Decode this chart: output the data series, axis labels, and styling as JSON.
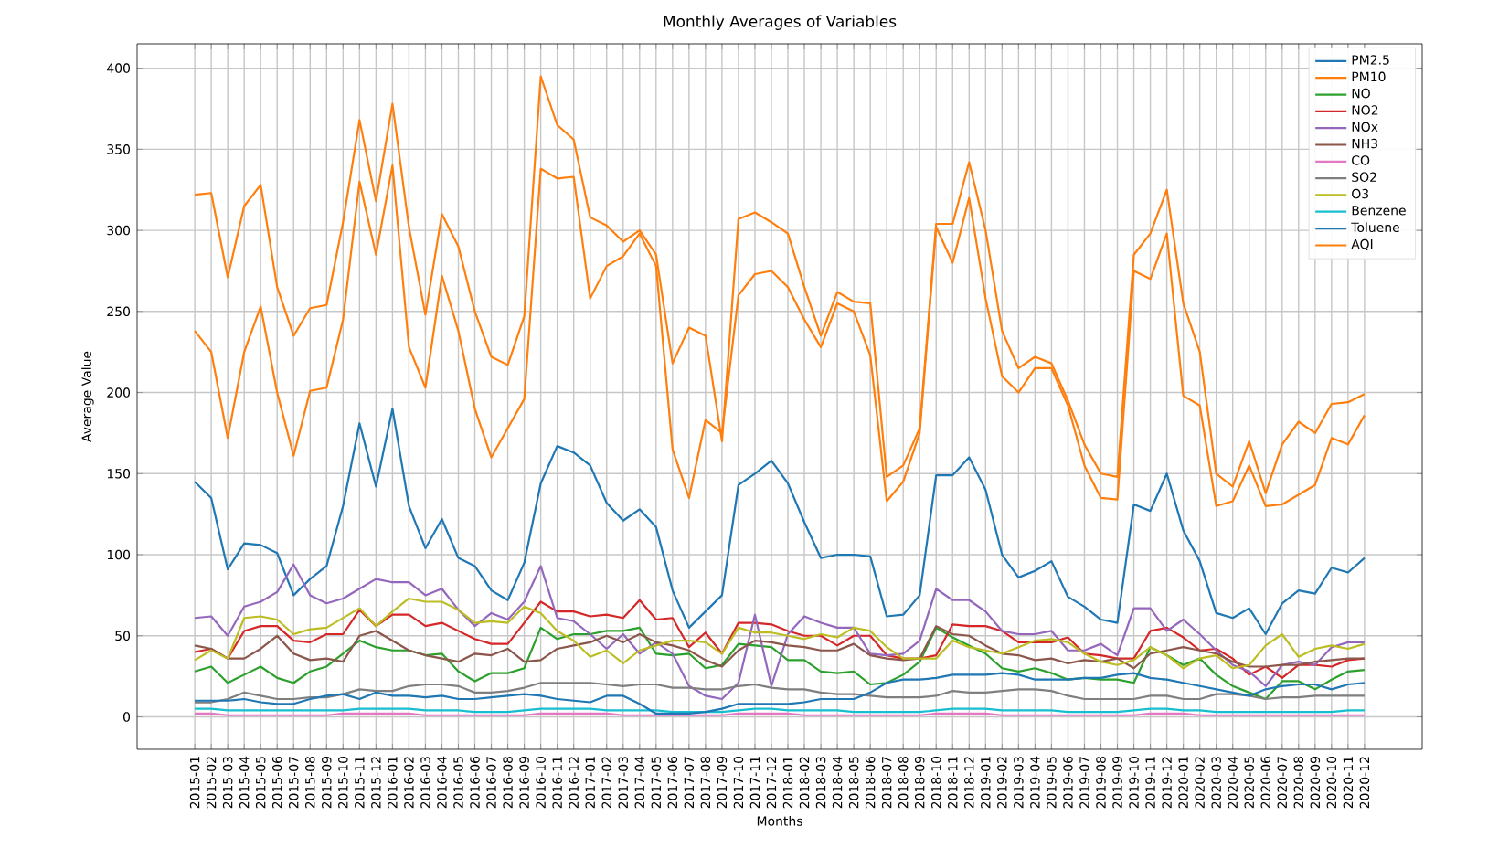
{
  "chart_data": {
    "type": "line",
    "title": "Monthly Averages of Variables",
    "xlabel": "Months",
    "ylabel": "Average Value",
    "categories": [
      "2015-01",
      "2015-02",
      "2015-03",
      "2015-04",
      "2015-05",
      "2015-06",
      "2015-07",
      "2015-08",
      "2015-09",
      "2015-10",
      "2015-11",
      "2015-12",
      "2016-01",
      "2016-02",
      "2016-03",
      "2016-04",
      "2016-05",
      "2016-06",
      "2016-07",
      "2016-08",
      "2016-09",
      "2016-10",
      "2016-11",
      "2016-12",
      "2017-01",
      "2017-02",
      "2017-03",
      "2017-04",
      "2017-05",
      "2017-06",
      "2017-07",
      "2017-08",
      "2017-09",
      "2017-10",
      "2017-11",
      "2017-12",
      "2018-01",
      "2018-02",
      "2018-03",
      "2018-04",
      "2018-05",
      "2018-06",
      "2018-07",
      "2018-08",
      "2018-09",
      "2018-10",
      "2018-11",
      "2018-12",
      "2019-01",
      "2019-02",
      "2019-03",
      "2019-04",
      "2019-05",
      "2019-06",
      "2019-07",
      "2019-08",
      "2019-09",
      "2019-10",
      "2019-11",
      "2019-12",
      "2020-01",
      "2020-02",
      "2020-03",
      "2020-04",
      "2020-05",
      "2020-06",
      "2020-07",
      "2020-08",
      "2020-09",
      "2020-10",
      "2020-11",
      "2020-12"
    ],
    "series": [
      {
        "name": "PM2.5",
        "color": "#1f77b4",
        "values": [
          145,
          135,
          91,
          107,
          106,
          101,
          75,
          85,
          93,
          130,
          181,
          142,
          190,
          130,
          104,
          122,
          98,
          93,
          78,
          72,
          95,
          144,
          167,
          163,
          155,
          132,
          121,
          128,
          117,
          78,
          55,
          65,
          75,
          143,
          150,
          158,
          144,
          120,
          98,
          100,
          100,
          99,
          62,
          63,
          75,
          149,
          149,
          160,
          140,
          100,
          86,
          90,
          96,
          74,
          68,
          60,
          58,
          131,
          127,
          150,
          115,
          96,
          64,
          61,
          67,
          51,
          70,
          78,
          76,
          92,
          89,
          98
        ]
      },
      {
        "name": "PM10",
        "color": "#ff7f0e",
        "values": [
          322,
          323,
          271,
          315,
          328,
          265,
          235,
          252,
          254,
          305,
          368,
          318,
          378,
          302,
          248,
          310,
          290,
          250,
          222,
          217,
          247,
          395,
          365,
          356,
          308,
          303,
          293,
          300,
          285,
          218,
          240,
          235,
          170,
          307,
          311,
          305,
          298,
          265,
          235,
          262,
          256,
          255,
          148,
          155,
          178,
          304,
          304,
          342,
          300,
          238,
          215,
          222,
          218,
          195,
          168,
          150,
          148,
          285,
          298,
          325,
          255,
          225,
          150,
          142,
          170,
          138,
          168,
          182,
          175,
          193,
          194,
          199
        ]
      },
      {
        "name": "NO",
        "color": "#2ca02c",
        "values": [
          28,
          31,
          21,
          26,
          31,
          24,
          21,
          28,
          31,
          39,
          47,
          43,
          41,
          41,
          38,
          39,
          28,
          22,
          27,
          27,
          30,
          55,
          48,
          51,
          51,
          53,
          53,
          55,
          39,
          38,
          39,
          30,
          32,
          45,
          44,
          43,
          35,
          35,
          28,
          27,
          28,
          20,
          21,
          26,
          34,
          55,
          49,
          44,
          39,
          30,
          28,
          30,
          27,
          23,
          24,
          23,
          23,
          21,
          43,
          38,
          32,
          36,
          26,
          19,
          15,
          11,
          22,
          22,
          17,
          23,
          28,
          29
        ]
      },
      {
        "name": "NO2",
        "color": "#d62728",
        "values": [
          40,
          42,
          36,
          53,
          56,
          56,
          47,
          46,
          51,
          51,
          66,
          56,
          63,
          63,
          56,
          58,
          53,
          48,
          45,
          45,
          58,
          71,
          65,
          65,
          62,
          63,
          61,
          72,
          60,
          61,
          43,
          52,
          39,
          58,
          58,
          57,
          53,
          50,
          50,
          44,
          50,
          50,
          38,
          36,
          36,
          38,
          57,
          56,
          56,
          53,
          46,
          46,
          46,
          49,
          39,
          38,
          36,
          36,
          53,
          55,
          49,
          41,
          42,
          36,
          26,
          31,
          24,
          32,
          32,
          31,
          35,
          36
        ]
      },
      {
        "name": "NOx",
        "color": "#9467bd",
        "values": [
          61,
          62,
          50,
          68,
          71,
          77,
          94,
          75,
          70,
          73,
          79,
          85,
          83,
          83,
          75,
          79,
          66,
          56,
          64,
          60,
          71,
          93,
          61,
          59,
          51,
          42,
          51,
          39,
          46,
          39,
          19,
          13,
          11,
          21,
          63,
          19,
          51,
          62,
          58,
          55,
          55,
          39,
          38,
          39,
          47,
          79,
          72,
          72,
          65,
          53,
          51,
          51,
          53,
          41,
          41,
          45,
          38,
          67,
          67,
          53,
          60,
          51,
          41,
          32,
          28,
          19,
          32,
          34,
          32,
          43,
          46,
          46
        ]
      },
      {
        "name": "NH3",
        "color": "#8c564b",
        "values": [
          44,
          42,
          36,
          36,
          42,
          50,
          39,
          35,
          36,
          34,
          50,
          53,
          47,
          41,
          38,
          36,
          34,
          39,
          38,
          42,
          34,
          35,
          42,
          44,
          46,
          50,
          46,
          51,
          46,
          44,
          41,
          35,
          31,
          41,
          47,
          46,
          44,
          43,
          41,
          41,
          45,
          38,
          36,
          35,
          36,
          56,
          51,
          50,
          44,
          39,
          38,
          35,
          36,
          33,
          35,
          34,
          36,
          30,
          39,
          41,
          43,
          41,
          39,
          34,
          31,
          31,
          32,
          32,
          34,
          35,
          36,
          36
        ]
      },
      {
        "name": "CO",
        "color": "#e377c2",
        "values": [
          2,
          2,
          1,
          1,
          1,
          1,
          1,
          1,
          1,
          2,
          2,
          2,
          2,
          2,
          1,
          1,
          1,
          1,
          1,
          1,
          1,
          2,
          2,
          2,
          2,
          2,
          1,
          1,
          1,
          1,
          1,
          1,
          1,
          2,
          2,
          2,
          2,
          1,
          1,
          1,
          1,
          1,
          1,
          1,
          1,
          2,
          2,
          2,
          2,
          1,
          1,
          1,
          1,
          1,
          1,
          1,
          1,
          1,
          2,
          2,
          2,
          1,
          1,
          1,
          1,
          1,
          1,
          1,
          1,
          1,
          1,
          1
        ]
      },
      {
        "name": "SO2",
        "color": "#7f7f7f",
        "values": [
          9,
          9,
          11,
          15,
          13,
          11,
          11,
          12,
          12,
          14,
          17,
          16,
          16,
          19,
          20,
          20,
          19,
          15,
          15,
          16,
          18,
          21,
          21,
          21,
          21,
          20,
          19,
          20,
          20,
          18,
          18,
          17,
          17,
          19,
          20,
          18,
          17,
          17,
          15,
          14,
          14,
          13,
          12,
          12,
          12,
          13,
          16,
          15,
          15,
          16,
          17,
          17,
          16,
          13,
          11,
          11,
          11,
          11,
          13,
          13,
          11,
          11,
          14,
          14,
          13,
          11,
          12,
          12,
          13,
          13,
          13,
          13
        ]
      },
      {
        "name": "O3",
        "color": "#bcbd22",
        "values": [
          35,
          41,
          36,
          61,
          62,
          60,
          51,
          54,
          55,
          61,
          67,
          56,
          65,
          73,
          71,
          71,
          66,
          58,
          59,
          58,
          68,
          64,
          53,
          47,
          37,
          41,
          33,
          41,
          44,
          47,
          47,
          46,
          39,
          55,
          52,
          52,
          50,
          48,
          51,
          49,
          55,
          53,
          43,
          36,
          36,
          36,
          47,
          43,
          41,
          39,
          43,
          47,
          48,
          46,
          39,
          34,
          32,
          35,
          43,
          38,
          30,
          36,
          38,
          30,
          32,
          44,
          51,
          37,
          42,
          44,
          42,
          45
        ]
      },
      {
        "name": "Benzene",
        "color": "#17becf",
        "values": [
          5,
          5,
          4,
          4,
          4,
          4,
          4,
          4,
          4,
          4,
          5,
          5,
          5,
          5,
          4,
          4,
          4,
          3,
          3,
          3,
          4,
          5,
          5,
          5,
          5,
          4,
          4,
          4,
          4,
          3,
          3,
          3,
          3,
          4,
          5,
          5,
          4,
          4,
          4,
          4,
          3,
          3,
          3,
          3,
          3,
          4,
          5,
          5,
          5,
          4,
          4,
          4,
          4,
          3,
          3,
          3,
          3,
          4,
          5,
          5,
          4,
          4,
          3,
          3,
          3,
          3,
          3,
          3,
          3,
          3,
          4,
          4
        ]
      },
      {
        "name": "Toluene",
        "color": "#1f77b4",
        "values": [
          10,
          10,
          10,
          11,
          9,
          8,
          8,
          11,
          13,
          14,
          11,
          15,
          13,
          13,
          12,
          13,
          11,
          11,
          12,
          13,
          14,
          13,
          11,
          10,
          9,
          13,
          13,
          8,
          2,
          2,
          2,
          3,
          5,
          8,
          8,
          8,
          8,
          9,
          11,
          11,
          11,
          15,
          21,
          23,
          23,
          24,
          26,
          26,
          26,
          27,
          26,
          23,
          23,
          23,
          24,
          24,
          26,
          27,
          24,
          23,
          21,
          19,
          17,
          15,
          13,
          17,
          19,
          20,
          20,
          17,
          20,
          21
        ]
      },
      {
        "name": "AQI",
        "color": "#ff7f0e",
        "values": [
          238,
          225,
          172,
          225,
          253,
          200,
          161,
          201,
          203,
          245,
          330,
          285,
          340,
          228,
          203,
          272,
          238,
          190,
          160,
          178,
          196,
          338,
          332,
          333,
          258,
          278,
          284,
          298,
          278,
          165,
          135,
          183,
          175,
          260,
          273,
          275,
          265,
          245,
          228,
          255,
          250,
          223,
          133,
          145,
          175,
          302,
          280,
          320,
          258,
          210,
          200,
          215,
          215,
          192,
          155,
          135,
          134,
          275,
          270,
          298,
          198,
          192,
          130,
          133,
          155,
          130,
          131,
          137,
          143,
          172,
          168,
          186
        ]
      }
    ],
    "ylim": [
      -20,
      415
    ],
    "yticks": [
      0,
      50,
      100,
      150,
      200,
      250,
      300,
      350,
      400
    ],
    "grid": true,
    "legend": "top right"
  }
}
